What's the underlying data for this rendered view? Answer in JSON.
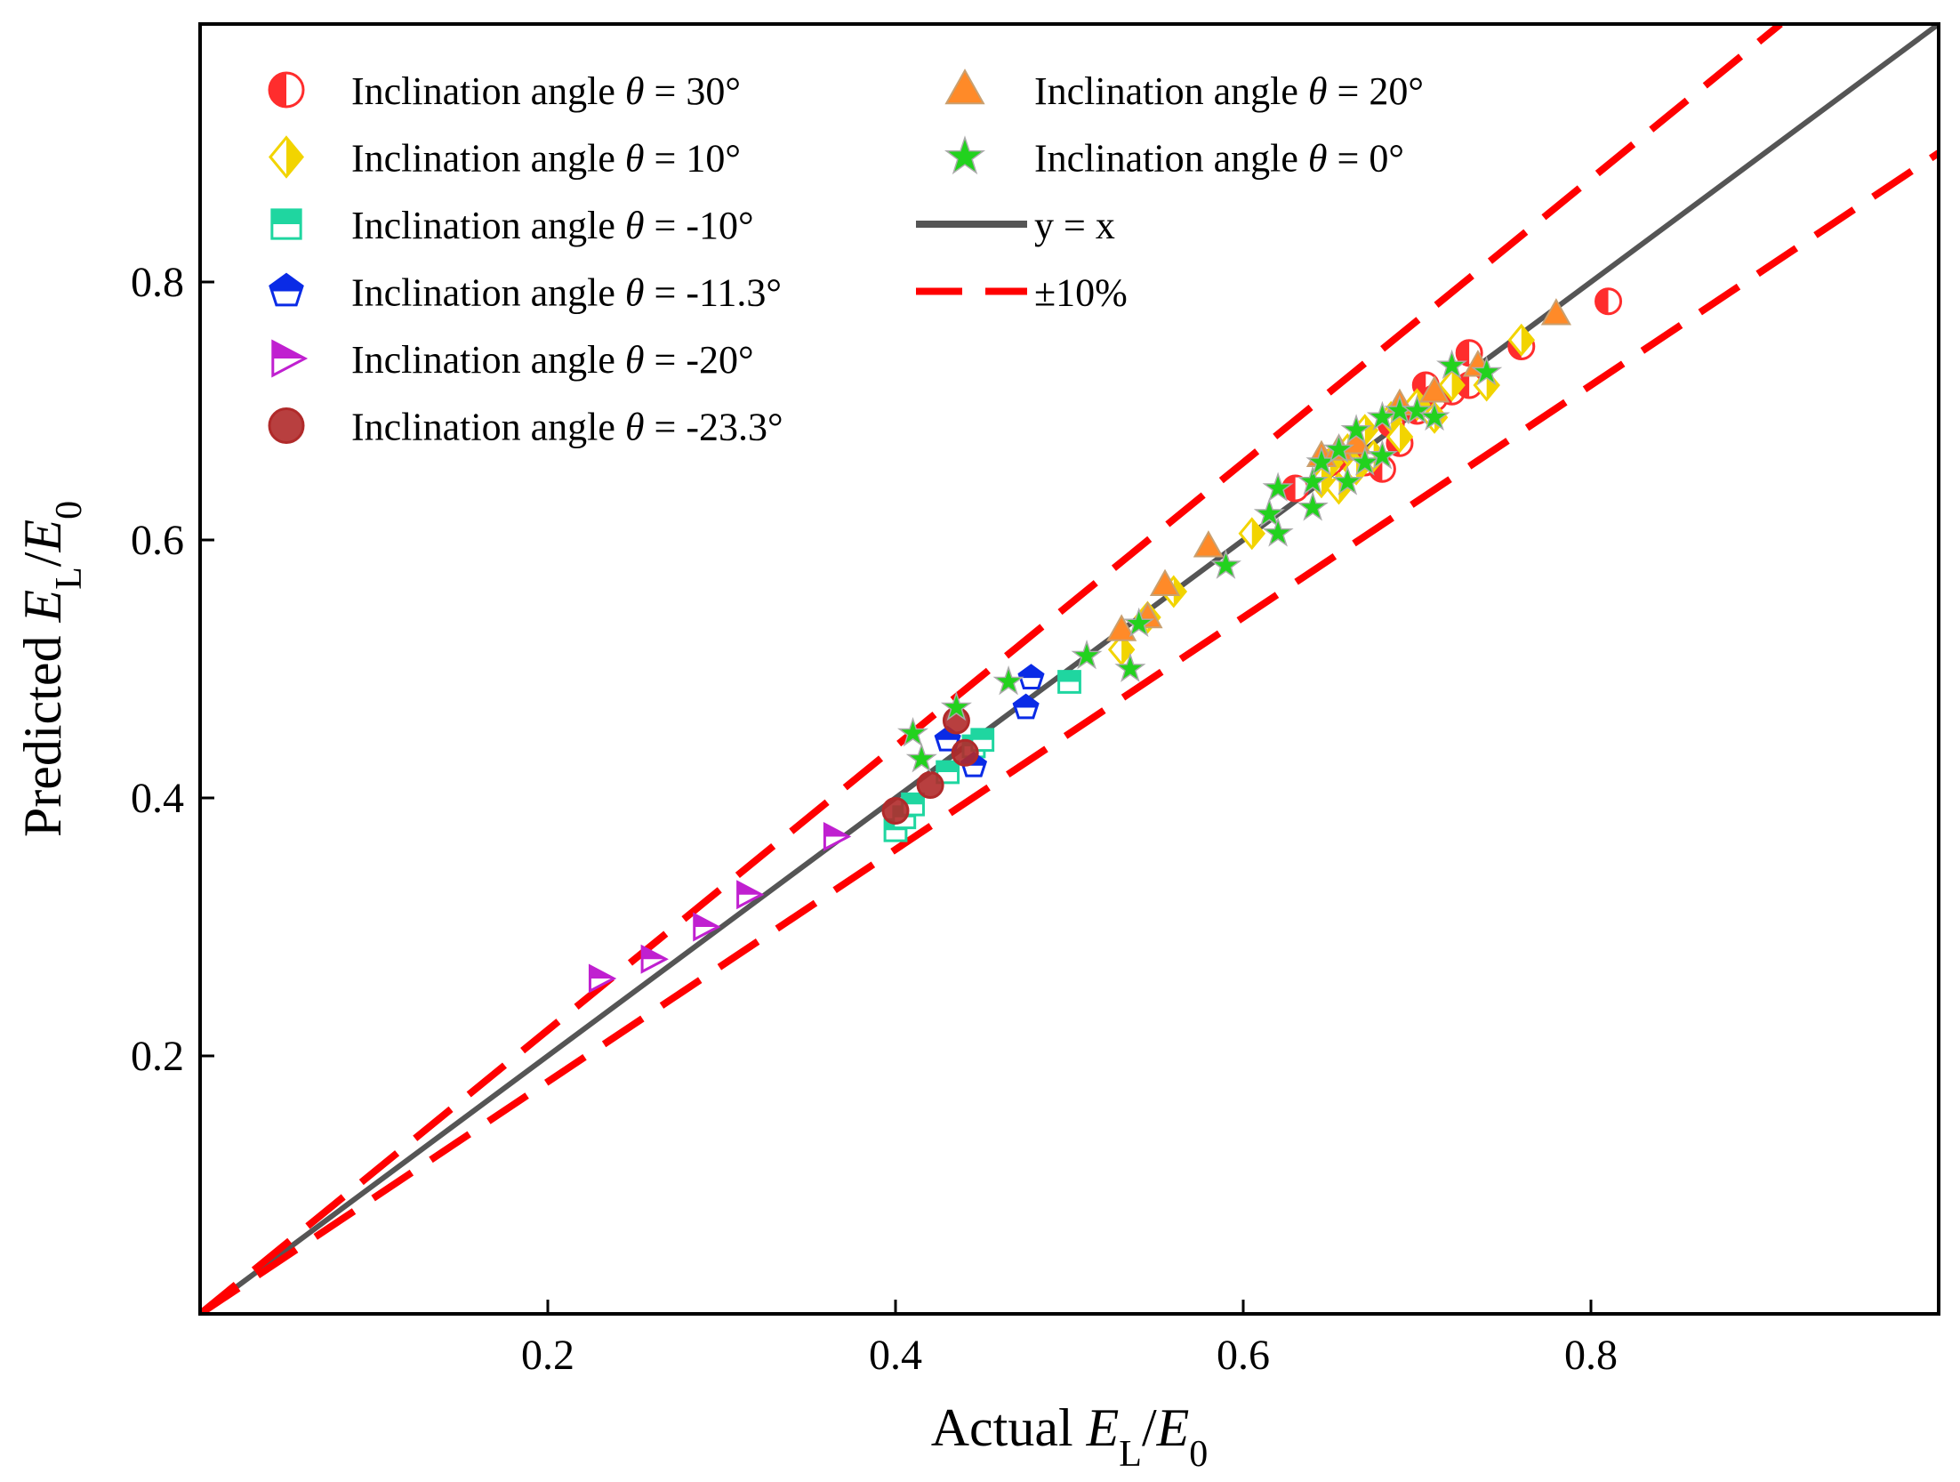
{
  "chart_data": {
    "type": "scatter",
    "title": "",
    "xlabel": {
      "prefix": "Actual ",
      "num": "E",
      "num_sub": "L",
      "slash": "/",
      "den": "E",
      "den_sub": "0"
    },
    "ylabel": {
      "prefix": "Predicted ",
      "num": "E",
      "num_sub": "L",
      "slash": "/",
      "den": "E",
      "den_sub": "0"
    },
    "xlim": [
      0.0,
      1.0
    ],
    "ylim": [
      0.0,
      1.0
    ],
    "xticks": [
      "0.2",
      "0.4",
      "0.6",
      "0.8"
    ],
    "yticks": [
      "0.2",
      "0.4",
      "0.6",
      "0.8"
    ],
    "legend_position": "top-left",
    "legend": [
      {
        "prefix": "Inclination angle ",
        "sym": "θ",
        "suffix": " = 30°"
      },
      {
        "prefix": "Inclination angle ",
        "sym": "θ",
        "suffix": " = 10°"
      },
      {
        "prefix": "Inclination angle ",
        "sym": "θ",
        "suffix": " = -10°"
      },
      {
        "prefix": "Inclination angle ",
        "sym": "θ",
        "suffix": " = -11.3°"
      },
      {
        "prefix": "Inclination angle ",
        "sym": "θ",
        "suffix": " = -20°"
      },
      {
        "prefix": "Inclination angle ",
        "sym": "θ",
        "suffix": " = -23.3°"
      },
      {
        "prefix": "Inclination angle ",
        "sym": "θ",
        "suffix": " = 20°"
      },
      {
        "prefix": "Inclination angle ",
        "sym": "θ",
        "suffix": " = 0°"
      },
      {
        "prefix": "",
        "sym": "",
        "suffix": "y = x"
      },
      {
        "prefix": "",
        "sym": "",
        "suffix": "±10%"
      }
    ],
    "reference_lines": [
      {
        "name": "y = x",
        "slope": 1.0,
        "color": "#555555",
        "style": "solid"
      },
      {
        "name": "+10%",
        "slope": 1.1,
        "color": "#ff0000",
        "style": "dashed"
      },
      {
        "name": "-10%",
        "slope": 0.9,
        "color": "#ff0000",
        "style": "dashed"
      }
    ],
    "series": [
      {
        "name": "theta=30",
        "marker": "circle-half",
        "color": "#ff2d2d",
        "points": [
          [
            0.63,
            0.64
          ],
          [
            0.65,
            0.66
          ],
          [
            0.66,
            0.665
          ],
          [
            0.67,
            0.66
          ],
          [
            0.68,
            0.655
          ],
          [
            0.685,
            0.69
          ],
          [
            0.69,
            0.675
          ],
          [
            0.7,
            0.7
          ],
          [
            0.705,
            0.72
          ],
          [
            0.71,
            0.71
          ],
          [
            0.72,
            0.715
          ],
          [
            0.73,
            0.72
          ],
          [
            0.73,
            0.745
          ],
          [
            0.76,
            0.75
          ],
          [
            0.81,
            0.785
          ]
        ]
      },
      {
        "name": "theta=10",
        "marker": "diamond-half",
        "color": "#f2d400",
        "points": [
          [
            0.53,
            0.515
          ],
          [
            0.545,
            0.54
          ],
          [
            0.56,
            0.56
          ],
          [
            0.605,
            0.605
          ],
          [
            0.645,
            0.645
          ],
          [
            0.65,
            0.66
          ],
          [
            0.655,
            0.64
          ],
          [
            0.66,
            0.67
          ],
          [
            0.665,
            0.655
          ],
          [
            0.67,
            0.685
          ],
          [
            0.675,
            0.665
          ],
          [
            0.685,
            0.695
          ],
          [
            0.69,
            0.68
          ],
          [
            0.7,
            0.705
          ],
          [
            0.71,
            0.695
          ],
          [
            0.72,
            0.72
          ],
          [
            0.74,
            0.72
          ],
          [
            0.76,
            0.755
          ]
        ]
      },
      {
        "name": "theta=-10",
        "marker": "square-half",
        "color": "#1fd6a0",
        "points": [
          [
            0.4,
            0.375
          ],
          [
            0.405,
            0.385
          ],
          [
            0.41,
            0.395
          ],
          [
            0.43,
            0.42
          ],
          [
            0.445,
            0.44
          ],
          [
            0.45,
            0.445
          ],
          [
            0.5,
            0.49
          ]
        ]
      },
      {
        "name": "theta=-11.3",
        "marker": "pentagon-half",
        "color": "#0a2be6",
        "points": [
          [
            0.43,
            0.445
          ],
          [
            0.445,
            0.425
          ],
          [
            0.475,
            0.47
          ],
          [
            0.478,
            0.493
          ]
        ]
      },
      {
        "name": "theta=-20",
        "marker": "triangle-right-half",
        "color": "#c020d0",
        "points": [
          [
            0.23,
            0.26
          ],
          [
            0.26,
            0.275
          ],
          [
            0.29,
            0.3
          ],
          [
            0.315,
            0.325
          ],
          [
            0.365,
            0.37
          ]
        ]
      },
      {
        "name": "theta=-23.3",
        "marker": "circle",
        "color": "#b02a2a",
        "points": [
          [
            0.4,
            0.39
          ],
          [
            0.42,
            0.41
          ],
          [
            0.435,
            0.46
          ],
          [
            0.44,
            0.435
          ]
        ]
      },
      {
        "name": "theta=20",
        "marker": "triangle-up",
        "color": "#ff8a28",
        "points": [
          [
            0.53,
            0.53
          ],
          [
            0.545,
            0.54
          ],
          [
            0.555,
            0.565
          ],
          [
            0.58,
            0.595
          ],
          [
            0.645,
            0.665
          ],
          [
            0.655,
            0.67
          ],
          [
            0.665,
            0.675
          ],
          [
            0.69,
            0.705
          ],
          [
            0.71,
            0.715
          ],
          [
            0.735,
            0.735
          ],
          [
            0.78,
            0.775
          ]
        ]
      },
      {
        "name": "theta=0",
        "marker": "star",
        "color": "#22d21e",
        "points": [
          [
            0.41,
            0.45
          ],
          [
            0.415,
            0.43
          ],
          [
            0.435,
            0.47
          ],
          [
            0.465,
            0.49
          ],
          [
            0.51,
            0.51
          ],
          [
            0.535,
            0.5
          ],
          [
            0.54,
            0.535
          ],
          [
            0.59,
            0.58
          ],
          [
            0.615,
            0.62
          ],
          [
            0.62,
            0.64
          ],
          [
            0.62,
            0.605
          ],
          [
            0.64,
            0.645
          ],
          [
            0.64,
            0.625
          ],
          [
            0.645,
            0.66
          ],
          [
            0.655,
            0.67
          ],
          [
            0.66,
            0.645
          ],
          [
            0.665,
            0.685
          ],
          [
            0.67,
            0.66
          ],
          [
            0.68,
            0.695
          ],
          [
            0.68,
            0.665
          ],
          [
            0.69,
            0.7
          ],
          [
            0.7,
            0.7
          ],
          [
            0.71,
            0.695
          ],
          [
            0.72,
            0.735
          ],
          [
            0.74,
            0.73
          ]
        ]
      }
    ]
  }
}
